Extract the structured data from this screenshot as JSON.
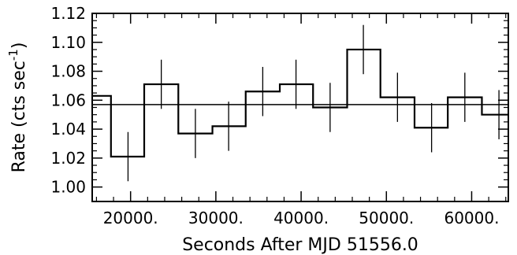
{
  "chart_data": {
    "type": "line",
    "style": "step histogram with error bars and horizontal mean line",
    "xlabel": "Seconds After MJD 51556.0",
    "ylabel": "Rate (cts sec",
    "ylabel_superscript": "-1",
    "ylabel_suffix": ")",
    "xlim": [
      15500,
      64300
    ],
    "ylim": [
      0.99,
      1.12
    ],
    "x_ticks": [
      20000,
      30000,
      40000,
      50000,
      60000
    ],
    "x_tick_labels": [
      "20000.",
      "30000.",
      "40000.",
      "50000.",
      "60000."
    ],
    "y_ticks": [
      1.0,
      1.02,
      1.04,
      1.06,
      1.08,
      1.1,
      1.12
    ],
    "y_tick_labels": [
      "1.00",
      "1.02",
      "1.04",
      "1.06",
      "1.08",
      "1.10",
      "1.12"
    ],
    "bin_edges": [
      15500,
      17700,
      21600,
      25600,
      29600,
      33500,
      37500,
      41400,
      45400,
      49300,
      53300,
      57200,
      61200,
      64300
    ],
    "bin_centers": [
      15500,
      19700,
      23600,
      27600,
      31500,
      35500,
      39400,
      43400,
      47300,
      51300,
      55300,
      59200,
      63200
    ],
    "values": [
      1.063,
      1.021,
      1.071,
      1.037,
      1.042,
      1.066,
      1.071,
      1.055,
      1.095,
      1.062,
      1.041,
      1.062,
      1.05
    ],
    "errors": [
      0.017,
      0.017,
      0.017,
      0.017,
      0.017,
      0.017,
      0.017,
      0.017,
      0.017,
      0.017,
      0.017,
      0.017,
      0.017
    ],
    "mean_line": 1.057,
    "grid": false,
    "color": "#000000"
  }
}
